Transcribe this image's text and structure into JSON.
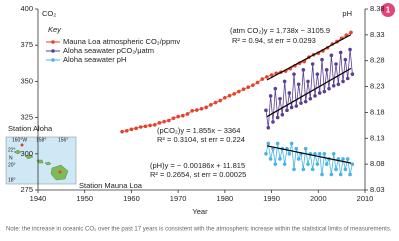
{
  "chart_data": {
    "type": "line",
    "y_label": "CO₂",
    "y2_label": "pH",
    "x_label": "Year",
    "legend_title": "Key",
    "xlim": [
      1940,
      2010
    ],
    "xticks": [
      1940,
      1950,
      1960,
      1970,
      1980,
      1990,
      2000,
      2010
    ],
    "ylim": [
      275,
      400
    ],
    "yticks": [
      275,
      300,
      325,
      350,
      375,
      400
    ],
    "y2lim": [
      8.03,
      8.38
    ],
    "y2ticks": [
      8.03,
      8.08,
      8.13,
      8.18,
      8.23,
      8.28,
      8.33,
      8.38
    ],
    "series": [
      {
        "name": "Mauna Loa atmospheric CO₂/ppmv",
        "color": "#e8402a",
        "x": [
          1958,
          1959,
          1960,
          1961,
          1962,
          1963,
          1964,
          1965,
          1966,
          1967,
          1968,
          1969,
          1970,
          1971,
          1972,
          1973,
          1974,
          1975,
          1976,
          1977,
          1978,
          1979,
          1980,
          1981,
          1982,
          1983,
          1984,
          1985,
          1986,
          1987,
          1988,
          1989,
          1990,
          1991,
          1992,
          1993,
          1994,
          1995,
          1996,
          1997,
          1998,
          1999,
          2000,
          2001,
          2002,
          2003,
          2004,
          2005,
          2006,
          2007
        ],
        "values": [
          315.3,
          315.9,
          316.9,
          317.6,
          318.5,
          319.0,
          319.6,
          320.0,
          321.4,
          322.2,
          323.0,
          324.6,
          325.7,
          326.3,
          327.5,
          329.7,
          330.2,
          331.1,
          332.1,
          333.8,
          335.4,
          336.8,
          338.7,
          340.1,
          341.4,
          343.0,
          344.6,
          346.0,
          347.4,
          349.2,
          351.6,
          353.1,
          354.4,
          355.6,
          356.4,
          357.1,
          358.8,
          360.8,
          362.6,
          363.7,
          366.7,
          368.4,
          369.5,
          371.1,
          373.2,
          375.8,
          377.5,
          379.8,
          381.9,
          383.8
        ]
      },
      {
        "name": "Aloha seawater pCO₂/μatm",
        "color": "#5b3f96",
        "x": [
          1988.8,
          1989.3,
          1989.8,
          1990.3,
          1990.8,
          1991.3,
          1991.8,
          1992.3,
          1992.8,
          1993.3,
          1993.8,
          1994.3,
          1994.8,
          1995.3,
          1995.8,
          1996.3,
          1996.8,
          1997.3,
          1997.8,
          1998.3,
          1998.8,
          1999.3,
          1999.8,
          2000.3,
          2000.8,
          2001.3,
          2001.8,
          2002.3,
          2002.8,
          2003.3,
          2003.8,
          2004.3,
          2004.8,
          2005.3,
          2005.8,
          2006.3,
          2006.8,
          2007.3
        ],
        "values": [
          330,
          318,
          340,
          322,
          345,
          325,
          338,
          327,
          350,
          330,
          342,
          332,
          355,
          333,
          348,
          335,
          358,
          336,
          350,
          338,
          362,
          340,
          355,
          342,
          365,
          343,
          358,
          345,
          368,
          347,
          362,
          348,
          370,
          350,
          365,
          352,
          372,
          355
        ]
      },
      {
        "name": "Aloha seawater pH",
        "color": "#46b4e8",
        "axis": "y2",
        "x": [
          1988.8,
          1989.3,
          1989.8,
          1990.3,
          1990.8,
          1991.3,
          1991.8,
          1992.3,
          1992.8,
          1993.3,
          1993.8,
          1994.3,
          1994.8,
          1995.3,
          1995.8,
          1996.3,
          1996.8,
          1997.3,
          1997.8,
          1998.3,
          1998.8,
          1999.3,
          1999.8,
          2000.3,
          2000.8,
          2001.3,
          2001.8,
          2002.3,
          2002.8,
          2003.3,
          2003.8,
          2004.3,
          2004.8,
          2005.3,
          2005.8,
          2006.3,
          2006.8,
          2007.3
        ],
        "values": [
          8.1,
          8.12,
          8.09,
          8.11,
          8.08,
          8.12,
          8.09,
          8.11,
          8.08,
          8.11,
          8.1,
          8.12,
          8.07,
          8.11,
          8.09,
          8.1,
          8.07,
          8.11,
          8.08,
          8.1,
          8.07,
          8.1,
          8.08,
          8.1,
          8.06,
          8.1,
          8.08,
          8.09,
          8.06,
          8.1,
          8.07,
          8.09,
          8.06,
          8.09,
          8.07,
          8.09,
          8.06,
          8.08
        ]
      }
    ],
    "trend_lines": [
      {
        "x": [
          1989,
          2007
        ],
        "values": [
          351.0,
          382.3
        ]
      },
      {
        "x": [
          1989,
          2007
        ],
        "values": [
          325.6,
          359.0
        ]
      },
      {
        "x": [
          1989,
          2007
        ],
        "values": [
          8.1155,
          8.082
        ],
        "axis": "y2"
      }
    ],
    "annotations": [
      "(atm CO₂)y = 1.738x − 3105.9",
      "R² = 0.94, st err = 0.0293",
      "(pCO₂)y = 1.855x − 3364",
      "R² = 0.3104, st err = 0.224",
      "(pH)y = − 0.00186x + 11.815",
      "R² = 0.2654, st err = 0.00025"
    ],
    "inset": {
      "labels": [
        "Station Aloha",
        "Station Mauna Loa"
      ],
      "lon": [
        "160°W",
        "158°",
        "156°"
      ],
      "lat": [
        "22°",
        "20°",
        "18°"
      ],
      "north": "N"
    },
    "badge": "1",
    "note": "Note: the increase in oceanic CO₂ over the past 17 years is consistent with the atmospheric increase within the statistical limits of measurements."
  }
}
